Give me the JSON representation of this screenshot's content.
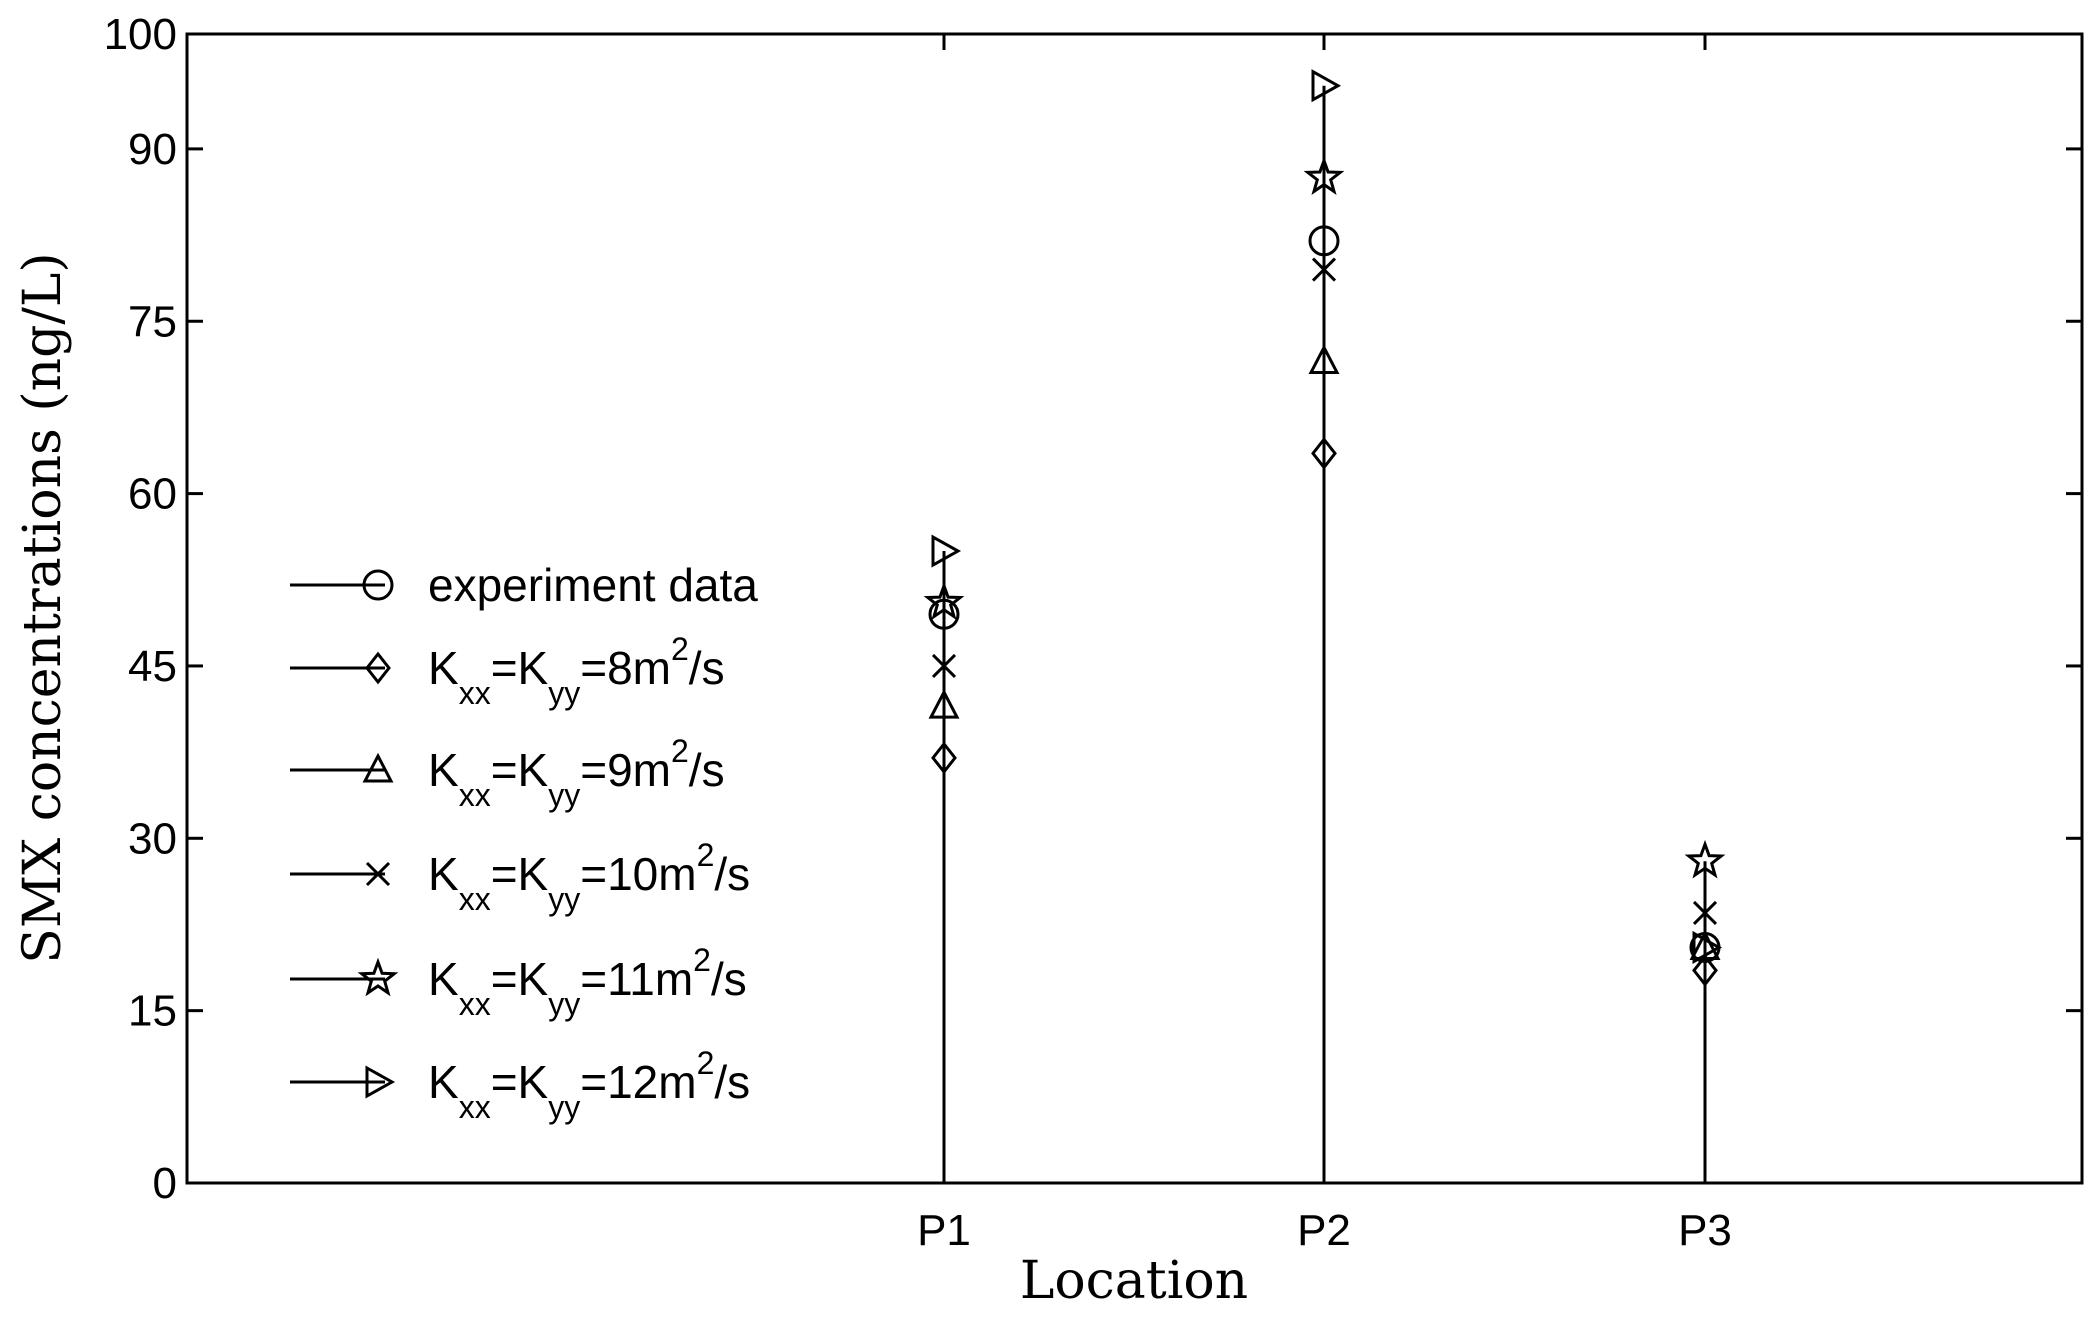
{
  "chart_data": {
    "type": "stem",
    "title": "",
    "xlabel": "Location",
    "ylabel": "SMX concentrations (ng/L)",
    "categories": [
      "P1",
      "P2",
      "P3"
    ],
    "ylim": [
      0,
      100
    ],
    "yticks": [
      "0",
      "15",
      "30",
      "45",
      "60",
      "75",
      "90",
      "100"
    ],
    "legend_position": "center-left",
    "grid": false,
    "series": [
      {
        "name": "experiment data",
        "marker": "circle",
        "values": [
          49.5,
          82,
          20.5
        ]
      },
      {
        "name": "Kxx=Kyy=8m2/s",
        "label_parts": [
          "K",
          "xx",
          "=K",
          "yy",
          "=8m",
          "2",
          "/s"
        ],
        "marker": "diamond",
        "values": [
          37,
          63.5,
          18.5
        ]
      },
      {
        "name": "Kxx=Kyy=9m2/s",
        "label_parts": [
          "K",
          "xx",
          "=K",
          "yy",
          "=9m",
          "2",
          "/s"
        ],
        "marker": "triangle-up",
        "values": [
          41.5,
          71.5,
          20.5
        ]
      },
      {
        "name": "Kxx=Kyy=10m2/s",
        "label_parts": [
          "K",
          "xx",
          "=K",
          "yy",
          "=10m",
          "2",
          "/s"
        ],
        "marker": "x",
        "values": [
          45,
          79.5,
          23.5
        ]
      },
      {
        "name": "Kxx=Kyy=11m2/s",
        "label_parts": [
          "K",
          "xx",
          "=K",
          "yy",
          "=11m",
          "2",
          "/s"
        ],
        "marker": "star",
        "values": [
          50.5,
          87.5,
          28
        ]
      },
      {
        "name": "Kxx=Kyy=12m2/s",
        "label_parts": [
          "K",
          "xx",
          "=K",
          "yy",
          "=12m",
          "2",
          "/s"
        ],
        "marker": "triangle-right",
        "values": [
          55,
          95.5,
          20.5
        ]
      }
    ]
  }
}
